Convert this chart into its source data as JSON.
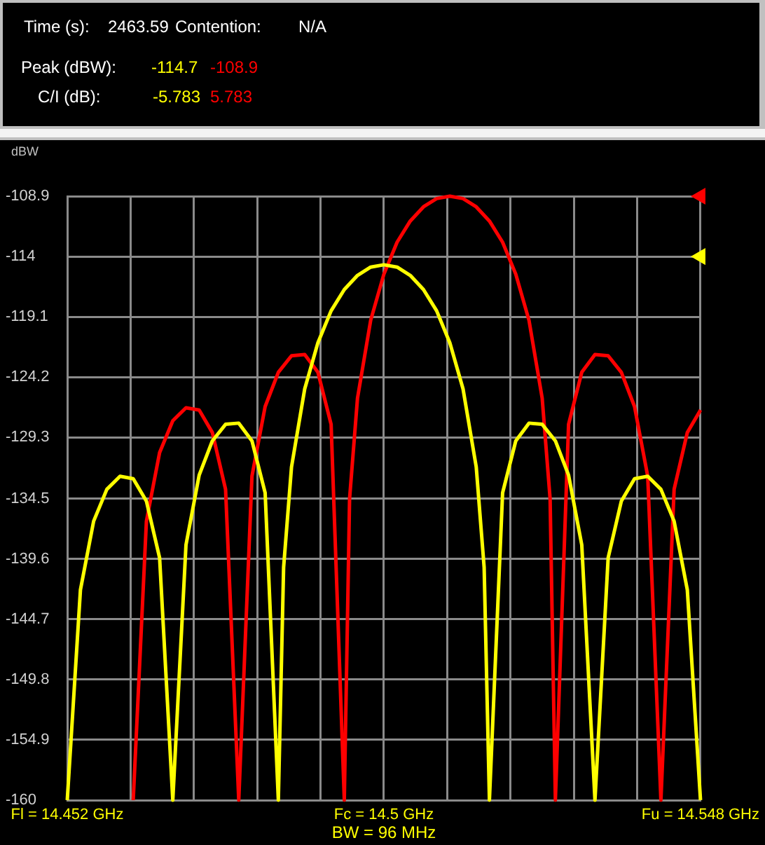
{
  "chart_data": {
    "type": "line",
    "ylabel": "dBW",
    "annotations": [
      "Time (s):",
      "2463.59",
      "Contention:",
      "N/A",
      "Peak (dBW):",
      "-114.7",
      "-108.9",
      "C/I (dB):",
      "-5.783",
      "5.783",
      "BW = 96 MHz"
    ],
    "xlim": [
      14.452,
      14.548
    ],
    "xticks": [
      {
        "value": 14.452,
        "label": "Fl = 14.452 GHz"
      },
      {
        "value": 14.4616,
        "label": null
      },
      {
        "value": 14.4712,
        "label": null
      },
      {
        "value": 14.4808,
        "label": null
      },
      {
        "value": 14.4904,
        "label": null
      },
      {
        "value": 14.5,
        "label": "Fc = 14.5 GHz"
      },
      {
        "value": 14.5096,
        "label": null
      },
      {
        "value": 14.5192,
        "label": null
      },
      {
        "value": 14.5288,
        "label": null
      },
      {
        "value": 14.5384,
        "label": null
      },
      {
        "value": 14.548,
        "label": "Fu = 14.548 GHz"
      }
    ],
    "ylim": [
      -160,
      -108.9
    ],
    "yticks": [
      -160,
      -154.9,
      -149.8,
      -144.7,
      -139.6,
      -134.5,
      -129.3,
      -124.2,
      -119.1,
      -114,
      -108.9
    ],
    "grid": true,
    "legend": false,
    "series": [
      {
        "type": "line",
        "color": "#ffff00",
        "x": [
          14.452,
          14.454,
          14.456,
          14.458,
          14.46,
          14.462,
          14.464,
          14.466,
          14.468,
          14.47,
          14.472,
          14.474,
          14.476,
          14.478,
          14.48,
          14.482,
          14.484,
          14.4848,
          14.486,
          14.488,
          14.49,
          14.492,
          14.494,
          14.496,
          14.498,
          14.5,
          14.502,
          14.504,
          14.506,
          14.508,
          14.51,
          14.512,
          14.514,
          14.5152,
          14.516,
          14.518,
          14.52,
          14.522,
          14.524,
          14.526,
          14.528,
          14.53,
          14.532,
          14.534,
          14.536,
          14.538,
          14.54,
          14.542,
          14.544,
          14.546,
          14.548
        ],
        "values": [
          -160,
          -142.2,
          -136.4,
          -133.7,
          -132.6,
          -132.8,
          -134.7,
          -139.5,
          -160,
          -138.4,
          -132.5,
          -129.6,
          -128.2,
          -128.1,
          -129.6,
          -134,
          -160,
          -140.3,
          -131.8,
          -125.2,
          -121.3,
          -118.6,
          -116.8,
          -115.6,
          -114.9,
          -114.7,
          -114.9,
          -115.6,
          -116.8,
          -118.6,
          -121.3,
          -125.2,
          -131.8,
          -140.3,
          -160,
          -134,
          -129.6,
          -128.1,
          -128.2,
          -129.6,
          -132.5,
          -138.4,
          -160,
          -139.5,
          -134.7,
          -132.8,
          -132.6,
          -133.7,
          -136.4,
          -142.2,
          -160
        ]
      },
      {
        "type": "line",
        "color": "#ff0000",
        "x": [
          14.462,
          14.464,
          14.466,
          14.468,
          14.47,
          14.472,
          14.474,
          14.476,
          14.478,
          14.48,
          14.482,
          14.484,
          14.486,
          14.488,
          14.49,
          14.492,
          14.494,
          14.4948,
          14.496,
          14.498,
          14.5,
          14.502,
          14.504,
          14.506,
          14.508,
          14.51,
          14.512,
          14.514,
          14.516,
          14.518,
          14.52,
          14.522,
          14.524,
          14.5252,
          14.526,
          14.528,
          14.53,
          14.532,
          14.534,
          14.536,
          14.538,
          14.54,
          14.542,
          14.544,
          14.546,
          14.548
        ],
        "values": [
          -160,
          -136.4,
          -130.6,
          -127.9,
          -126.8,
          -127,
          -128.9,
          -133.7,
          -160,
          -132.6,
          -126.7,
          -123.8,
          -122.4,
          -122.3,
          -123.8,
          -128.2,
          -160,
          -134.5,
          -126,
          -119.4,
          -115.5,
          -112.8,
          -111,
          -109.8,
          -109.1,
          -108.9,
          -109.1,
          -109.8,
          -111,
          -112.8,
          -115.5,
          -119.4,
          -126,
          -134.5,
          -160,
          -128.2,
          -123.8,
          -122.3,
          -122.4,
          -123.8,
          -126.7,
          -132.6,
          -160,
          -133.7,
          -128.9,
          -127
        ]
      },
      {
        "type": "scatter",
        "marker": "triangle",
        "color": "#ff0000",
        "x": [
          14.548
        ],
        "values": [
          -108.9
        ]
      },
      {
        "type": "scatter",
        "marker": "triangle",
        "color": "#ffff00",
        "x": [
          14.548
        ],
        "values": [
          -114
        ]
      }
    ]
  }
}
